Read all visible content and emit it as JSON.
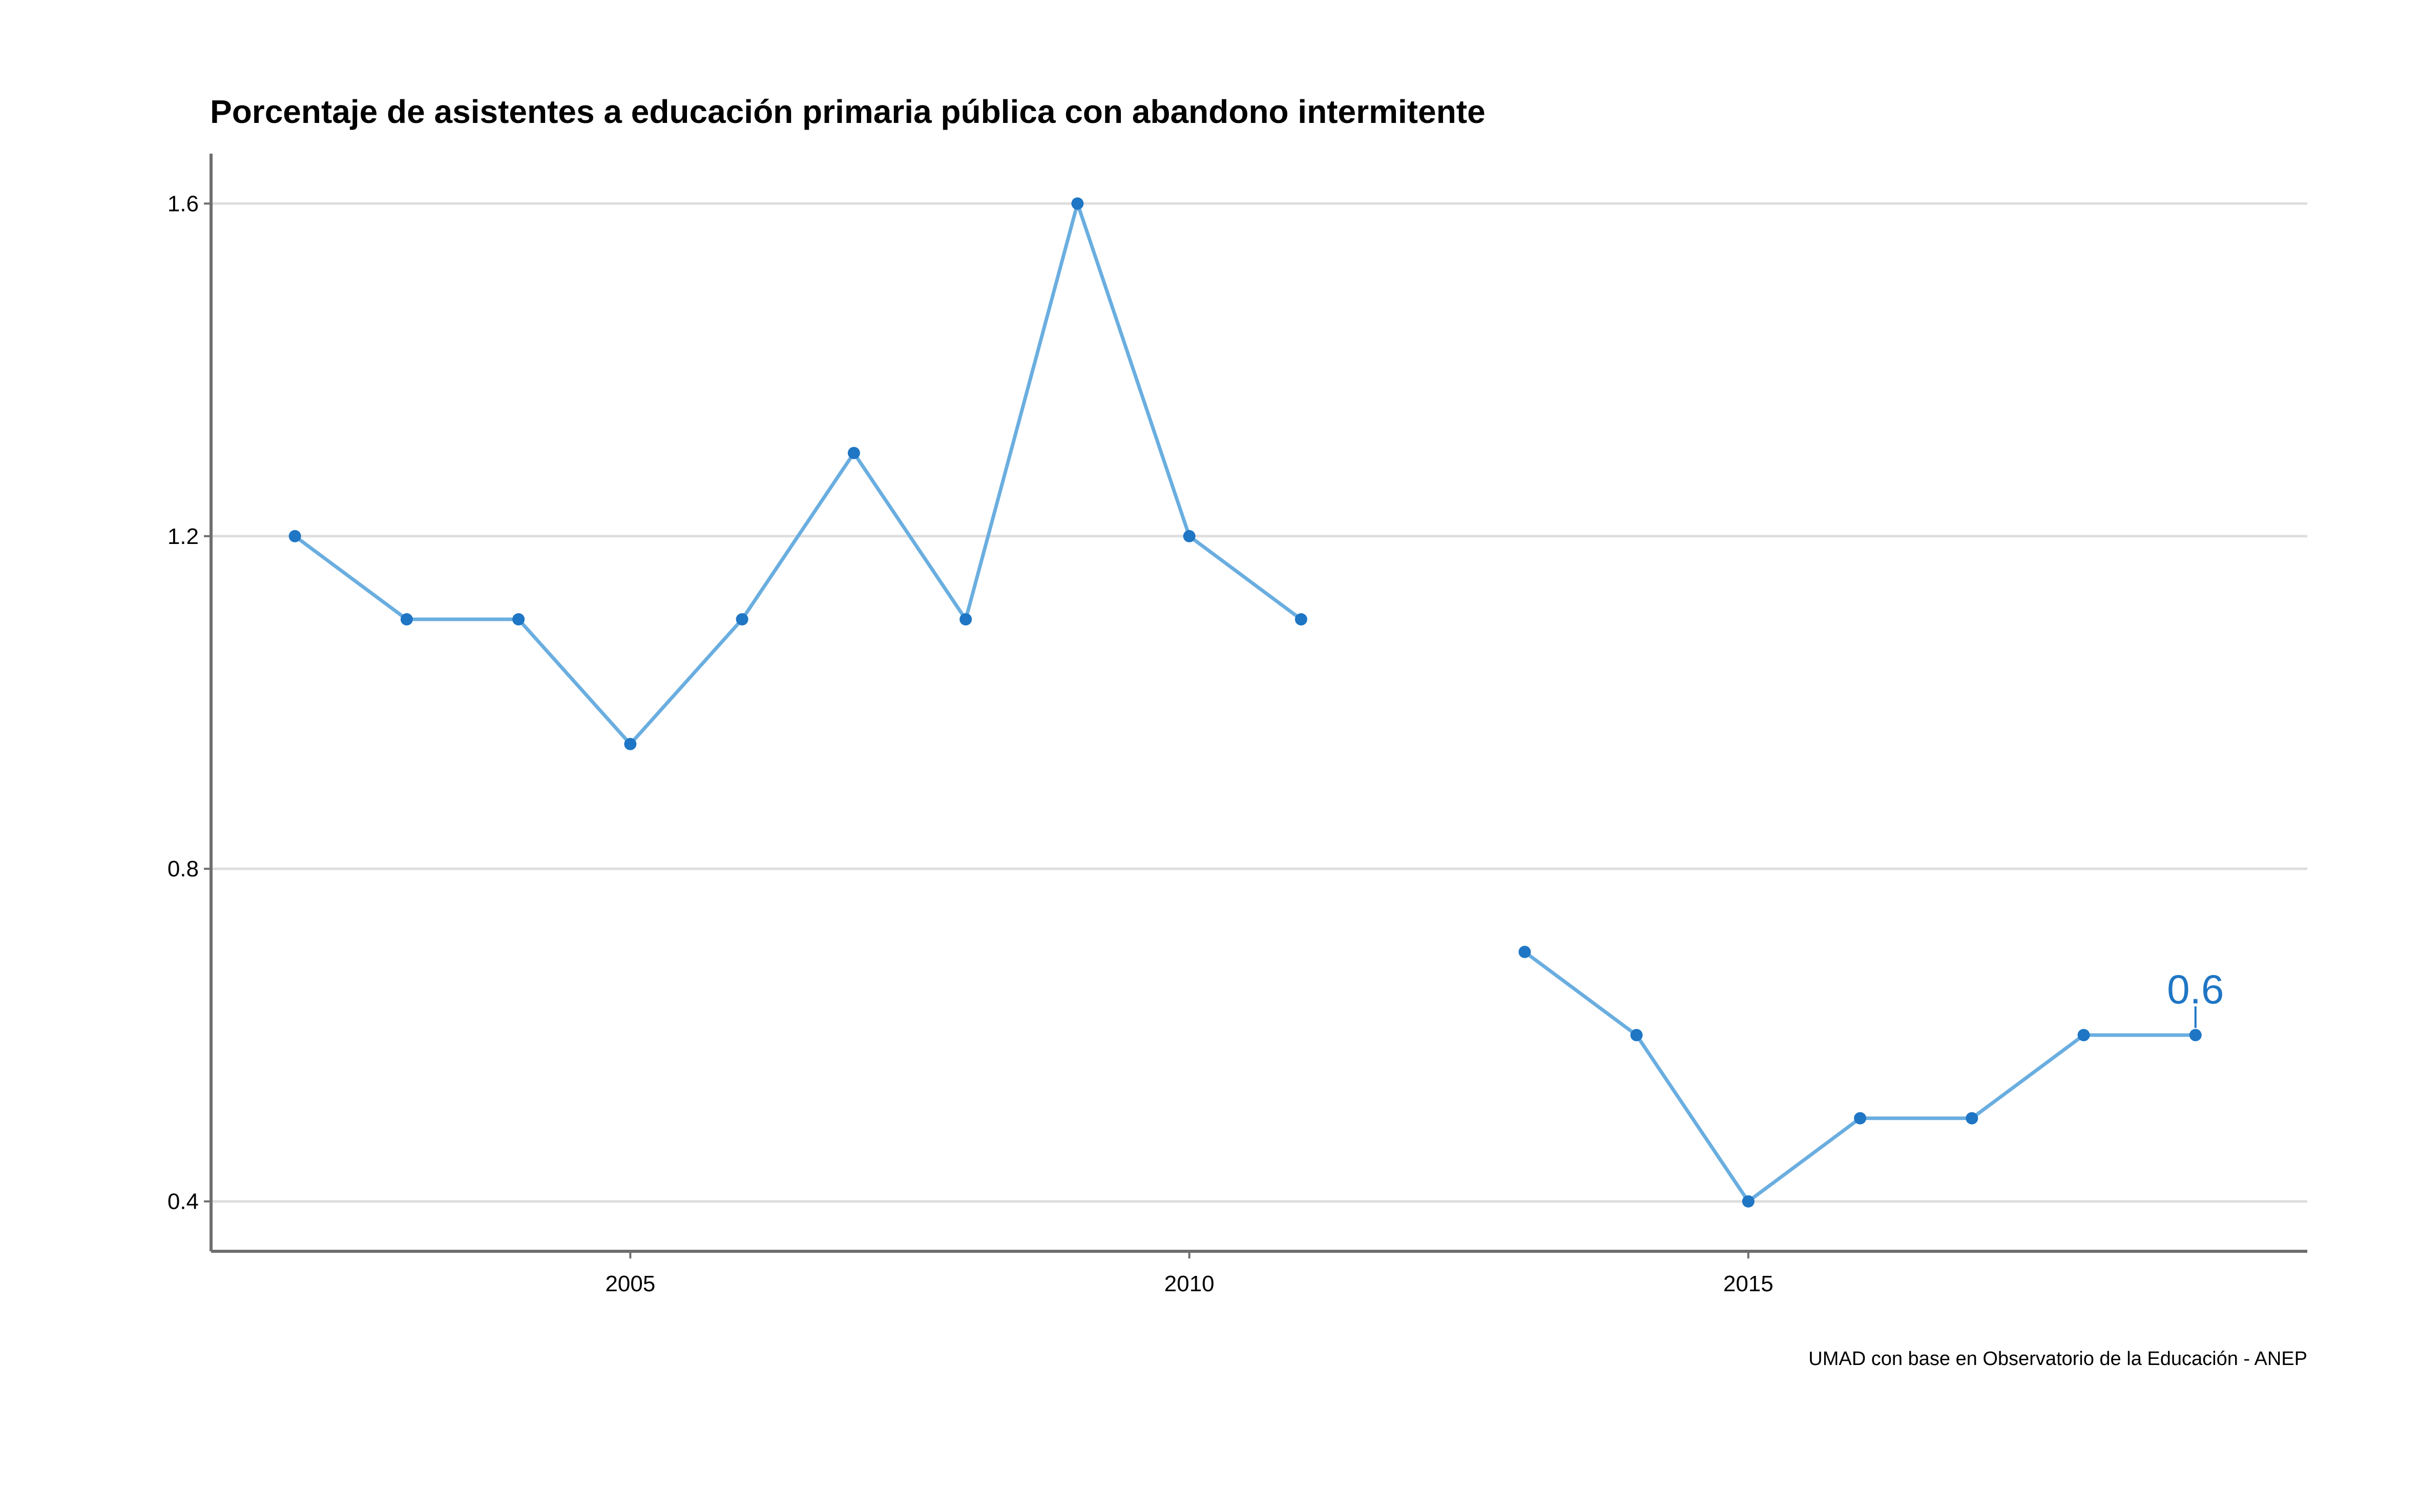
{
  "chart_data": {
    "type": "line",
    "title": "Porcentaje de asistentes a educación primaria pública con abandono intermitente",
    "caption": "UMAD con base en Observatorio de la Educación - ANEP",
    "xlabel": "",
    "ylabel": "",
    "xlim": [
      2001.25,
      2020.0
    ],
    "ylim": [
      0.34,
      1.66
    ],
    "x_ticks": [
      2005,
      2010,
      2015
    ],
    "x_tick_labels": [
      "2005",
      "2010",
      "2015"
    ],
    "y_ticks": [
      0.4,
      0.8,
      1.2,
      1.6
    ],
    "y_tick_labels": [
      "0.4",
      "0.8",
      "1.2",
      "1.6"
    ],
    "grid": "horizontal",
    "legend": "none",
    "line_color": "#6aaee0",
    "point_color": "#1f76c4",
    "gridline_color": "#dedede",
    "axis_color": "#6e6e6e",
    "series": [
      {
        "x": [
          2002,
          2003,
          2004,
          2005,
          2006,
          2007,
          2008,
          2009,
          2010,
          2011,
          2012,
          2013,
          2014,
          2015,
          2016,
          2017,
          2018,
          2019
        ],
        "values": [
          1.2,
          1.1,
          1.1,
          0.95,
          1.1,
          1.3,
          1.1,
          1.6,
          1.2,
          1.1,
          null,
          0.7,
          0.6,
          0.4,
          0.5,
          0.5,
          0.6,
          0.6
        ]
      }
    ],
    "annotations": [
      {
        "x": 2019,
        "y": 0.6,
        "text": "0.6"
      }
    ]
  }
}
